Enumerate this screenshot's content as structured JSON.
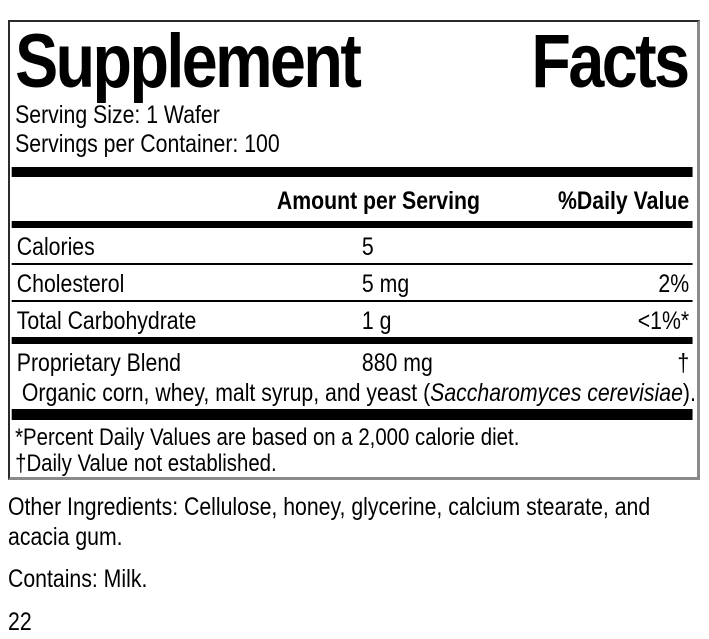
{
  "label": {
    "title": {
      "word1": "Supplement",
      "word2": "Facts"
    },
    "serving_size": "Serving Size: 1 Wafer",
    "servings_per_container": "Servings per Container: 100",
    "columns": {
      "amount": "Amount per Serving",
      "daily_value": "%Daily Value"
    },
    "rows": [
      {
        "name": "Calories",
        "amount": "5",
        "dv": ""
      },
      {
        "name": "Cholesterol",
        "amount": "5 mg",
        "dv": "2%"
      },
      {
        "name": "Total Carbohydrate",
        "amount": "1 g",
        "dv": "<1%*"
      },
      {
        "name": "Proprietary Blend",
        "amount": "880 mg",
        "dv": "†"
      }
    ],
    "blend_description": {
      "prefix": "Organic corn, whey, malt syrup, and yeast (",
      "species": "Saccharomyces cerevisiae",
      "suffix": ")."
    },
    "footnotes": [
      "*Percent Daily Values are based on a 2,000 calorie diet.",
      "†Daily Value not established."
    ]
  },
  "below": {
    "other_ingredients_line1": "Other Ingredients: Cellulose, honey, glycerine, calcium stearate, and",
    "other_ingredients_line2": "acacia gum.",
    "contains": "Contains: Milk.",
    "page_number": "22"
  },
  "colors": {
    "text": "#000000",
    "panel_border_dark": "#2b2b2b",
    "panel_border_shadow": "#8a8a8a",
    "divider": "#000000"
  }
}
